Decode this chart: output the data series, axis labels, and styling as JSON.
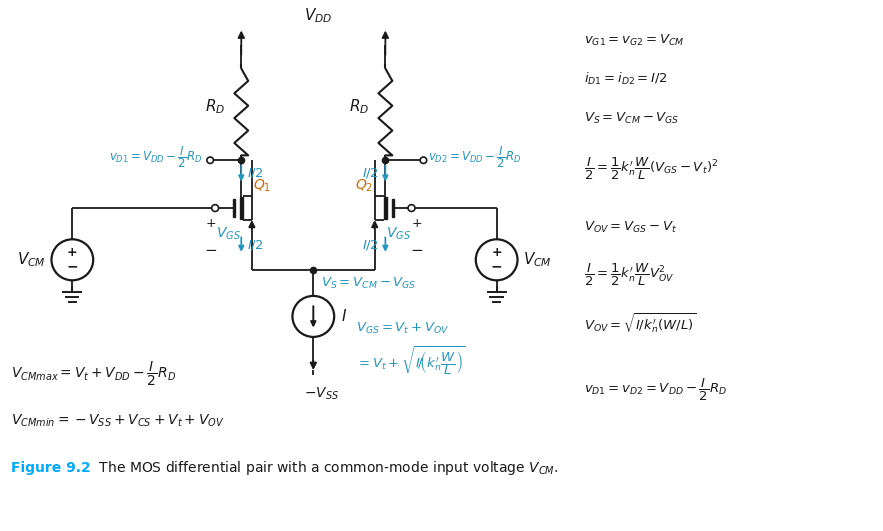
{
  "bg_color": "#ffffff",
  "fig_width": 8.83,
  "fig_height": 5.31,
  "dpi": 100,
  "blue": "#2596be",
  "black": "#1a1a1a",
  "caption_blue": "#00aaff",
  "orange": "#cc6600"
}
